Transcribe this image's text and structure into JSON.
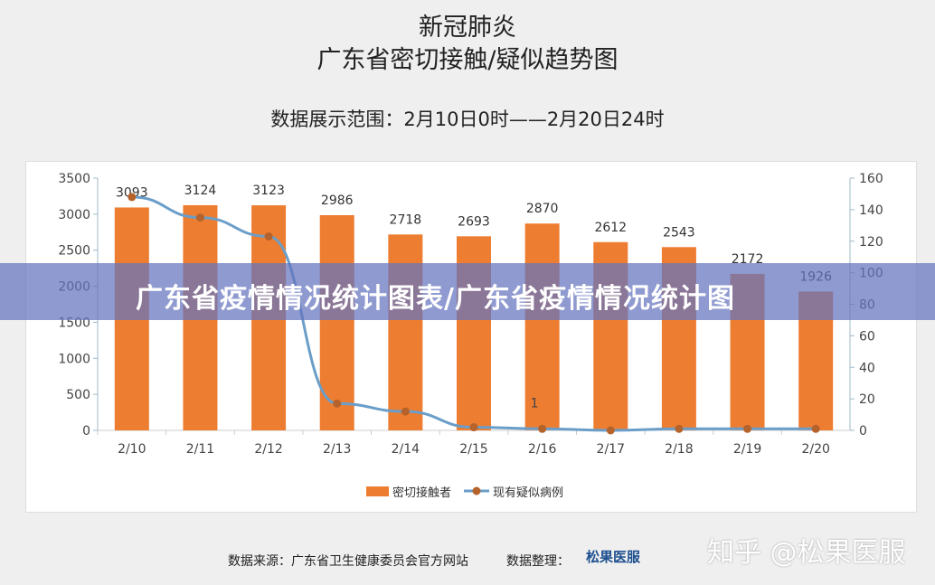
{
  "title_line1": "新冠肺炎",
  "title_line2": "广东省密切接触/疑似趋势图",
  "subtitle": "数据展示范围：2月10日0时——2月20日24时",
  "banner": "广东省疫情情况统计图表/广东省疫情情况统计图",
  "footer": {
    "source": "数据来源：广东省卫生健康委员会官方网站",
    "organizer": "数据整理：",
    "logo": "松果医服",
    "watermark": "知乎 @松果医服"
  },
  "colors": {
    "bar": "#ed7d31",
    "line": "#6a9ec9",
    "marker": "#b5622b"
  },
  "chart_data": {
    "type": "bar+line",
    "categories": [
      "2/10",
      "2/11",
      "2/12",
      "2/13",
      "2/14",
      "2/15",
      "2/16",
      "2/17",
      "2/18",
      "2/19",
      "2/20"
    ],
    "series": [
      {
        "name": "密切接触者",
        "type": "bar",
        "axis": "left",
        "values": [
          3093,
          3124,
          3123,
          2986,
          2718,
          2693,
          2870,
          2612,
          2543,
          2172,
          1926
        ]
      },
      {
        "name": "现有疑似病例",
        "type": "line",
        "axis": "right",
        "values": [
          148,
          135,
          123,
          17,
          12,
          2,
          1,
          0,
          1,
          1,
          1
        ]
      }
    ],
    "left_ylim": [
      0,
      3500
    ],
    "left_ticks": [
      0,
      500,
      1000,
      1500,
      2000,
      2500,
      3000,
      3500
    ],
    "right_ylim": [
      0,
      160
    ],
    "right_ticks": [
      0,
      20,
      40,
      60,
      80,
      100,
      120,
      140,
      160
    ],
    "line_label_shown": {
      "index": 6,
      "text": "1"
    },
    "legend": "bottom"
  }
}
